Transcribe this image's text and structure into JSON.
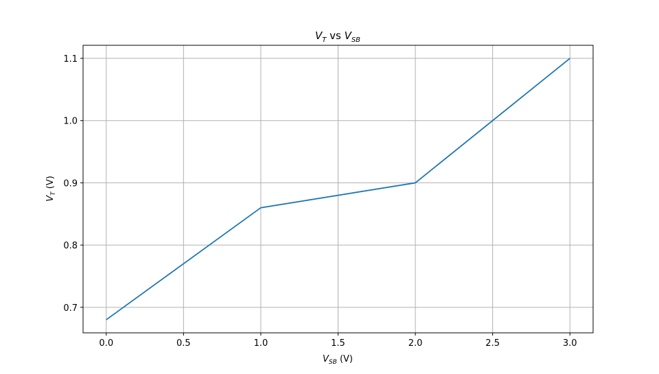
{
  "chart_data": {
    "type": "line",
    "title": {
      "main": "V",
      "main_sub": "T",
      "mid": " vs ",
      "end": "V",
      "end_sub": "SB"
    },
    "xlabel": {
      "main": "V",
      "sub": "SB",
      "unit": " (V)"
    },
    "ylabel": {
      "main": "V",
      "sub": "T",
      "unit": " (V)"
    },
    "xlim": [
      -0.15,
      3.15
    ],
    "ylim": [
      0.659,
      1.121
    ],
    "x_ticks": [
      0.0,
      0.5,
      1.0,
      1.5,
      2.0,
      2.5,
      3.0
    ],
    "x_tick_labels": [
      "0.0",
      "0.5",
      "1.0",
      "1.5",
      "2.0",
      "2.5",
      "3.0"
    ],
    "y_ticks": [
      0.7,
      0.8,
      0.9,
      1.0,
      1.1
    ],
    "y_tick_labels": [
      "0.7",
      "0.8",
      "0.9",
      "1.0",
      "1.1"
    ],
    "grid": true,
    "series": [
      {
        "x": [
          0.0,
          1.0,
          2.0,
          3.0
        ],
        "y": [
          0.68,
          0.86,
          0.9,
          1.1
        ],
        "color": "#1f77b4"
      }
    ]
  }
}
